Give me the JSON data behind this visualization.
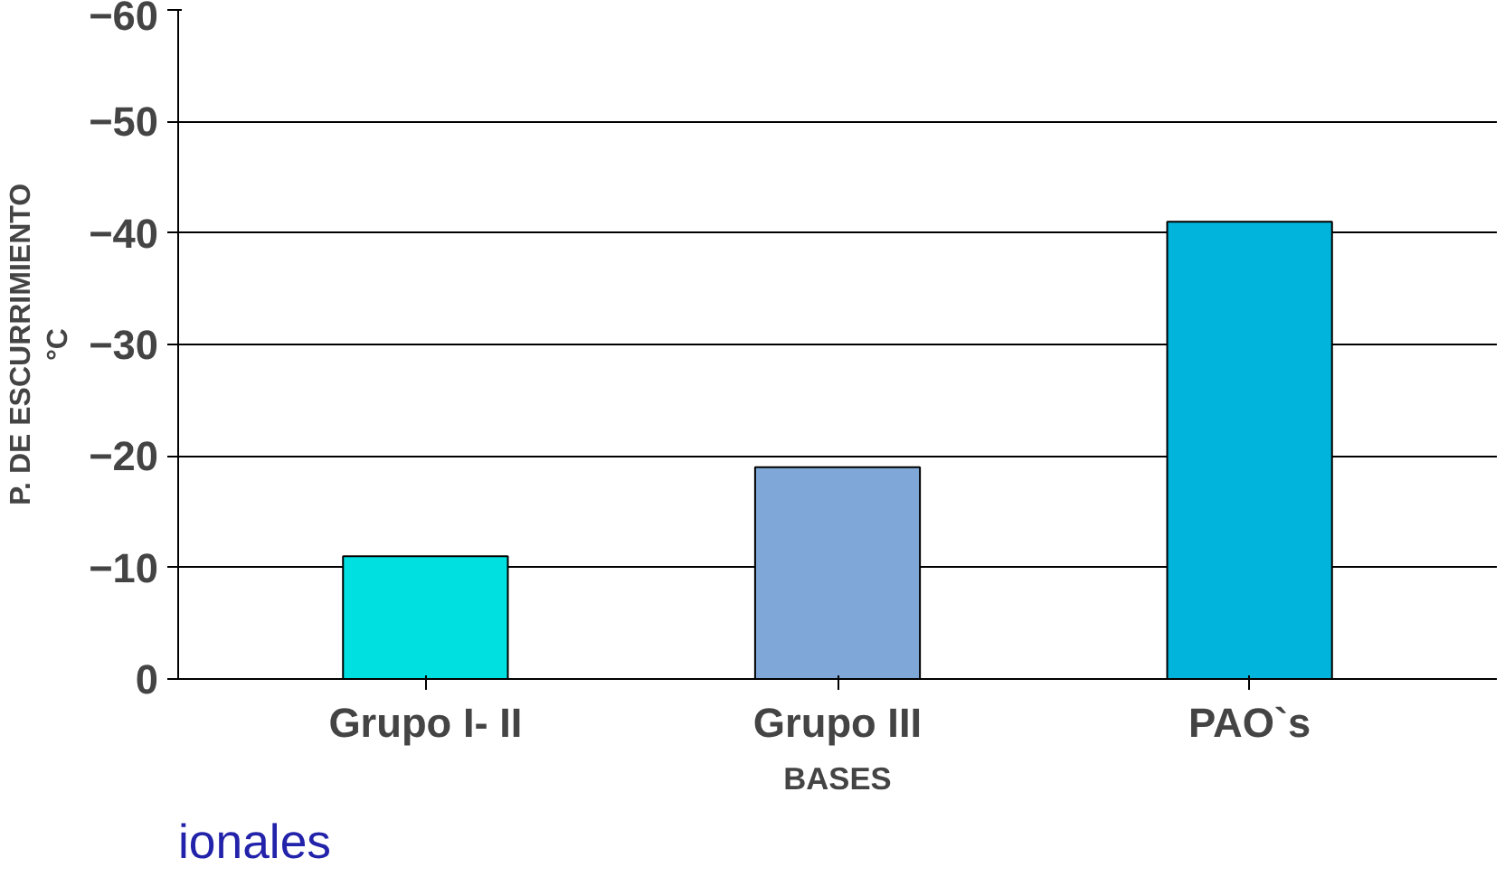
{
  "chart_data": {
    "type": "bar",
    "categories": [
      "Grupo I- II",
      "Grupo III",
      "PAO`s"
    ],
    "values": [
      -11,
      -19,
      -41
    ],
    "colors": [
      "#00e0e0",
      "#7fa8d8",
      "#00b4dc"
    ],
    "xlabel": "BASES",
    "ylabel": "P. DE ESCURRIMIENTO\n°C",
    "ylim": [
      0,
      -60
    ],
    "yticks": [
      0,
      -10,
      -20,
      -30,
      -40,
      -50,
      -60
    ],
    "grid": "y",
    "annotations": [
      "ionales"
    ]
  }
}
